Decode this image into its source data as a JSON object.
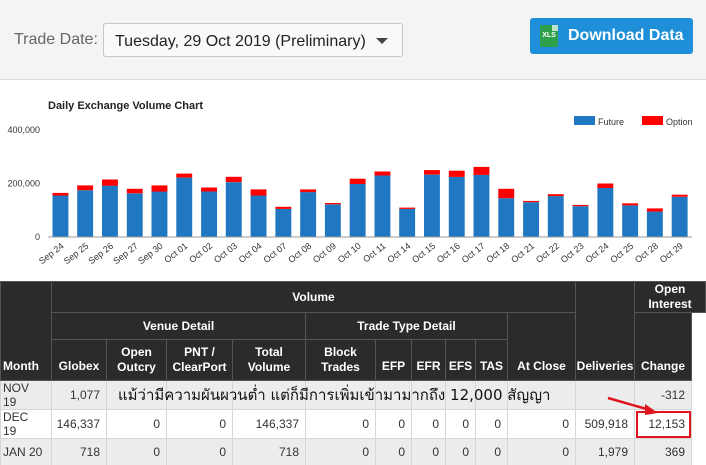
{
  "header": {
    "trade_date_label": "Trade Date:",
    "trade_date_value": "Tuesday, 29 Oct 2019 (Preliminary)",
    "download_label": "Download Data",
    "download_icon_text": "XLS"
  },
  "chart_data": {
    "type": "bar",
    "stacked": true,
    "title": "Daily Exchange Volume Chart",
    "categories": [
      "Sep 24",
      "Sep 25",
      "Sep 26",
      "Sep 27",
      "Sep 30",
      "Oct 01",
      "Oct 02",
      "Oct 03",
      "Oct 04",
      "Oct 07",
      "Oct 08",
      "Oct 09",
      "Oct 10",
      "Oct 11",
      "Oct 14",
      "Oct 15",
      "Oct 16",
      "Oct 17",
      "Oct 18",
      "Oct 21",
      "Oct 22",
      "Oct 23",
      "Oct 24",
      "Oct 25",
      "Oct 28",
      "Oct 29"
    ],
    "series": [
      {
        "name": "Future",
        "color": "#1f78c1",
        "values": [
          155000,
          175000,
          192000,
          163000,
          170000,
          222000,
          170000,
          205000,
          155000,
          105000,
          168000,
          122000,
          198000,
          230000,
          105000,
          233000,
          225000,
          232000,
          145000,
          130000,
          153000,
          115000,
          183000,
          118000,
          95000,
          150000
        ]
      },
      {
        "name": "Option",
        "color": "#ff0000",
        "values": [
          10000,
          18000,
          23000,
          17000,
          23000,
          15000,
          15000,
          20000,
          23000,
          8000,
          10000,
          5000,
          20000,
          15000,
          5000,
          17000,
          23000,
          30000,
          35000,
          5000,
          7000,
          5000,
          17000,
          8000,
          12000,
          8000
        ]
      }
    ],
    "yticks": [
      "0",
      "200,000",
      "400,000"
    ],
    "ylim": [
      0,
      400000
    ],
    "legend_position": "top-right",
    "grid": false
  },
  "table": {
    "group_volume": "Volume",
    "group_open_interest": "Open Interest",
    "group_venue": "Venue Detail",
    "group_trade_type": "Trade Type Detail",
    "col_month": "Month",
    "col_globex": "Globex",
    "col_open_outcry": "Open Outcry",
    "col_pnt": "PNT / ClearPort",
    "col_total": "Total Volume",
    "col_block": "Block Trades",
    "col_efp": "EFP",
    "col_efr": "EFR",
    "col_efs": "EFS",
    "col_tas": "TAS",
    "col_deliveries": "Deliveries",
    "col_at_close": "At Close",
    "col_change": "Change",
    "rows": [
      {
        "month": "NOV 19",
        "globex": "1,077",
        "outcry": "",
        "pnt": "",
        "total": "",
        "block": "",
        "efp": "",
        "efr": "",
        "efs": "",
        "tas": "",
        "deliveries": "",
        "at_close": "",
        "change": "-312"
      },
      {
        "month": "DEC 19",
        "globex": "146,337",
        "outcry": "0",
        "pnt": "0",
        "total": "146,337",
        "block": "0",
        "efp": "0",
        "efr": "0",
        "efs": "0",
        "tas": "0",
        "deliveries": "0",
        "at_close": "509,918",
        "change": "12,153"
      },
      {
        "month": "JAN 20",
        "globex": "718",
        "outcry": "0",
        "pnt": "0",
        "total": "718",
        "block": "0",
        "efp": "0",
        "efr": "0",
        "efs": "0",
        "tas": "0",
        "deliveries": "0",
        "at_close": "1,979",
        "change": "369"
      }
    ]
  },
  "annotation": {
    "text": "แม้ว่ามีความผันผวนต่ำ แต่ก็มีการเพิ่มเข้ามามากถึง 12,000 สัญญา"
  }
}
